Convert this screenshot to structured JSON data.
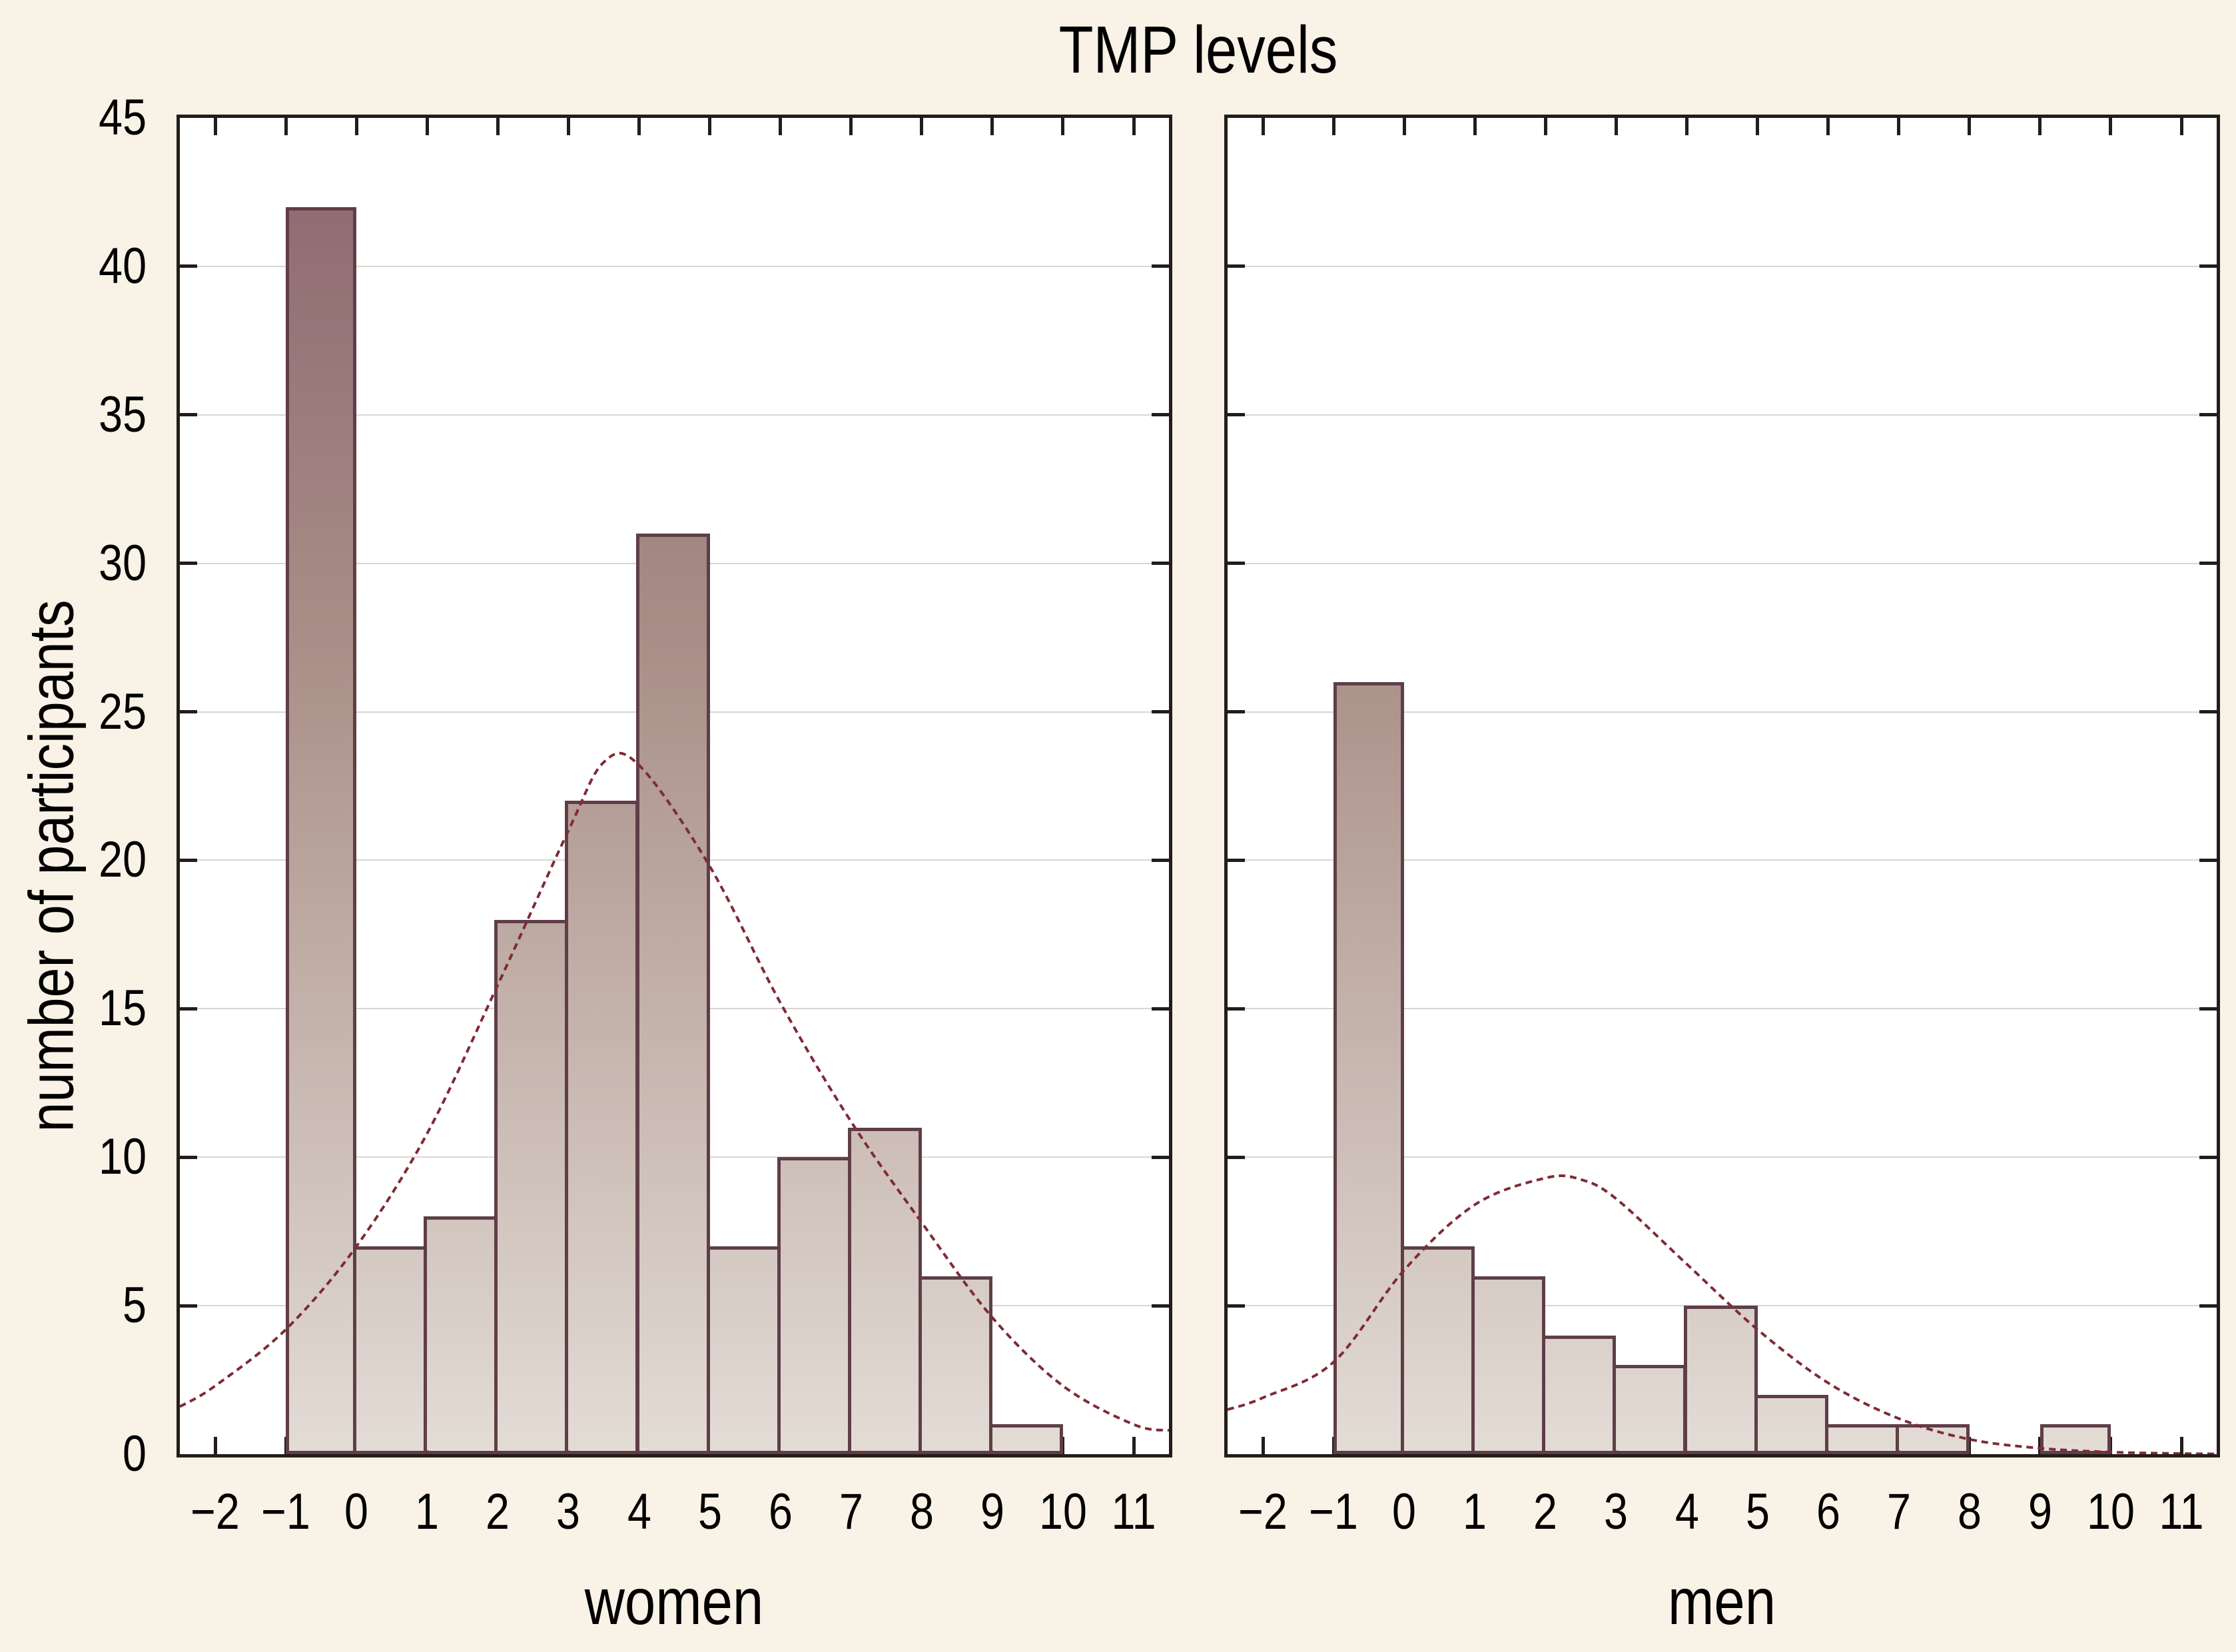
{
  "title": "TMP levels",
  "chart_data": {
    "type": "bar",
    "variant": "histogram_with_normal_curve",
    "title": "TMP levels",
    "ylabel": "number of participants",
    "xlim": [
      -2.5,
      11.5
    ],
    "ylim": [
      0,
      45
    ],
    "grid": "horizontal",
    "legend": "none",
    "x_ticks": [
      -2,
      -1,
      0,
      1,
      2,
      3,
      4,
      5,
      6,
      7,
      8,
      9,
      10,
      11
    ],
    "x_tick_labels": [
      "−2",
      "−1",
      "0",
      "1",
      "2",
      "3",
      "4",
      "5",
      "6",
      "7",
      "8",
      "9",
      "10",
      "11"
    ],
    "y_ticks": [
      0,
      5,
      10,
      15,
      20,
      25,
      30,
      35,
      40,
      45
    ],
    "y_tick_labels": [
      "0",
      "5",
      "10",
      "15",
      "20",
      "25",
      "30",
      "35",
      "40",
      "45"
    ],
    "grid_y": [
      5,
      10,
      15,
      20,
      25,
      30,
      35,
      40
    ],
    "bin_edges": [
      -1,
      0,
      1,
      2,
      3,
      4,
      5,
      6,
      7,
      8,
      9,
      10
    ],
    "panels": [
      {
        "label": "women",
        "counts": [
          42,
          7,
          8,
          18,
          22,
          31,
          7,
          10,
          11,
          6,
          1
        ],
        "normal_curve_points": [
          [
            -2.5,
            1.6
          ],
          [
            -2,
            2.3
          ],
          [
            -1,
            4.2
          ],
          [
            0,
            7.0
          ],
          [
            1,
            10.8
          ],
          [
            2,
            15.8
          ],
          [
            3,
            21.0
          ],
          [
            3.5,
            23.3
          ],
          [
            4,
            23.2
          ],
          [
            5,
            19.8
          ],
          [
            6,
            15.2
          ],
          [
            7,
            11.2
          ],
          [
            8,
            7.8
          ],
          [
            9,
            4.6
          ],
          [
            10,
            2.3
          ],
          [
            11,
            1.0
          ],
          [
            11.5,
            0.8
          ]
        ]
      },
      {
        "label": "men",
        "counts": [
          26,
          7,
          6,
          4,
          3,
          5,
          2,
          1,
          1,
          0,
          1
        ],
        "normal_curve_points": [
          [
            -2.5,
            1.5
          ],
          [
            -2,
            1.9
          ],
          [
            -1,
            3.1
          ],
          [
            0,
            6.2
          ],
          [
            1,
            8.4
          ],
          [
            2,
            9.3
          ],
          [
            2.5,
            9.25
          ],
          [
            3,
            8.6
          ],
          [
            4,
            6.4
          ],
          [
            5,
            4.2
          ],
          [
            6,
            2.4
          ],
          [
            7,
            1.2
          ],
          [
            8,
            0.5
          ],
          [
            9,
            0.2
          ],
          [
            10,
            0.07
          ],
          [
            11,
            0.02
          ],
          [
            11.5,
            0.01
          ]
        ]
      }
    ],
    "colors": {
      "background": "#f8f3e6",
      "plot_background": "#ffffff",
      "axis": "#221d1a",
      "gridline": "#dbd5d1",
      "bar_border": "#5f3e48",
      "bar_gradient_bottom": "#e3dcd5",
      "bar_gradient_mid": "#a98f88",
      "bar_gradient_top": "#8a656d",
      "curve": "#7e2b36",
      "text": "#000000"
    }
  }
}
